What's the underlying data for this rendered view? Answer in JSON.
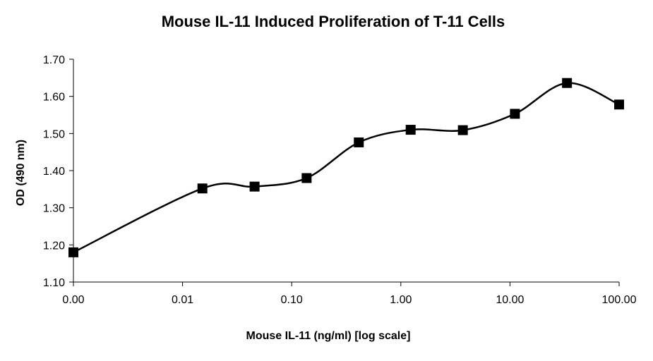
{
  "chart_data": {
    "type": "line",
    "title": "Mouse IL-11 Induced Proliferation of T-11 Cells",
    "xlabel": "Mouse IL-11 (ng/ml) [log scale]",
    "ylabel": "OD (490 nm)",
    "x_scale": "log",
    "x_tick_labels": [
      "0.00",
      "0.01",
      "0.10",
      "1.00",
      "10.00",
      "100.00"
    ],
    "y_tick_labels": [
      "1.10",
      "1.20",
      "1.30",
      "1.40",
      "1.50",
      "1.60",
      "1.70"
    ],
    "ylim": [
      1.1,
      1.7
    ],
    "grid": false,
    "marker": "square",
    "series": [
      {
        "x": [
          0.001,
          0.0152,
          0.0457,
          0.137,
          0.412,
          1.23,
          3.7,
          11.1,
          33.3,
          100
        ],
        "y": [
          1.18,
          1.352,
          1.357,
          1.38,
          1.476,
          1.51,
          1.509,
          1.553,
          1.636,
          1.578
        ]
      }
    ]
  }
}
